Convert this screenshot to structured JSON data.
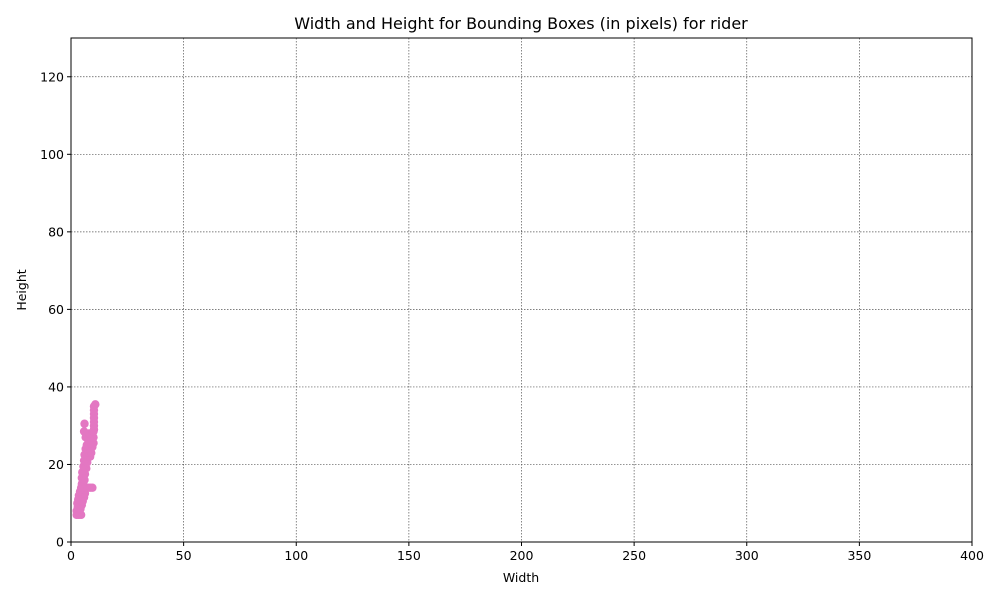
{
  "chart_data": {
    "type": "scatter",
    "title": "Width and Height for Bounding Boxes (in pixels) for rider",
    "xlabel": "Width",
    "ylabel": "Height",
    "xlim": [
      0,
      400
    ],
    "ylim": [
      0,
      130
    ],
    "x_ticks": [
      0,
      50,
      100,
      150,
      200,
      250,
      300,
      350,
      400
    ],
    "y_ticks": [
      0,
      20,
      40,
      60,
      80,
      100,
      120
    ],
    "grid": true,
    "point_color": "#e377c2",
    "series": [
      {
        "points": [
          [
            2.5,
            7
          ],
          [
            3.5,
            7
          ],
          [
            4.5,
            7
          ],
          [
            2.5,
            8
          ],
          [
            3.2,
            8.5
          ],
          [
            4.2,
            8.5
          ],
          [
            3.0,
            9
          ],
          [
            4.0,
            9.5
          ],
          [
            4.8,
            9.5
          ],
          [
            2.8,
            10
          ],
          [
            3.5,
            10.5
          ],
          [
            4.5,
            10.5
          ],
          [
            5.2,
            10.5
          ],
          [
            3.2,
            11
          ],
          [
            4.0,
            11.5
          ],
          [
            5.0,
            11.5
          ],
          [
            5.8,
            11.5
          ],
          [
            3.5,
            12
          ],
          [
            4.5,
            12.5
          ],
          [
            5.5,
            12.5
          ],
          [
            6.2,
            12.5
          ],
          [
            4.0,
            13
          ],
          [
            5.0,
            13.5
          ],
          [
            6.0,
            13.5
          ],
          [
            4.5,
            14
          ],
          [
            5.5,
            14
          ],
          [
            6.5,
            14
          ],
          [
            7.5,
            14
          ],
          [
            8.5,
            14
          ],
          [
            9.5,
            14
          ],
          [
            4.8,
            15
          ],
          [
            5.5,
            15.5
          ],
          [
            6.0,
            16
          ],
          [
            4.8,
            16.5
          ],
          [
            5.2,
            17
          ],
          [
            6.2,
            17.5
          ],
          [
            5.0,
            18
          ],
          [
            5.8,
            18.5
          ],
          [
            6.8,
            19
          ],
          [
            5.5,
            19.5
          ],
          [
            6.2,
            20
          ],
          [
            7.2,
            20.5
          ],
          [
            5.8,
            21
          ],
          [
            6.5,
            21.5
          ],
          [
            7.5,
            22
          ],
          [
            8.5,
            22
          ],
          [
            6.0,
            22.5
          ],
          [
            7.0,
            23
          ],
          [
            8.0,
            23
          ],
          [
            9.0,
            23
          ],
          [
            6.5,
            24
          ],
          [
            7.5,
            24
          ],
          [
            8.5,
            24
          ],
          [
            9.5,
            24.5
          ],
          [
            7.0,
            25
          ],
          [
            8.0,
            25.5
          ],
          [
            9.0,
            25.5
          ],
          [
            10.0,
            25.5
          ],
          [
            7.5,
            26.5
          ],
          [
            9.0,
            27
          ],
          [
            10.0,
            27
          ],
          [
            6.5,
            27
          ],
          [
            8.0,
            28
          ],
          [
            10.0,
            28.5
          ],
          [
            5.8,
            28.5
          ],
          [
            10.2,
            29
          ],
          [
            10.2,
            30
          ],
          [
            6.0,
            30.5
          ],
          [
            10.2,
            31
          ],
          [
            10.2,
            32
          ],
          [
            10.2,
            33
          ],
          [
            10.2,
            34
          ],
          [
            10.2,
            35
          ],
          [
            10.8,
            35.5
          ]
        ]
      }
    ]
  }
}
